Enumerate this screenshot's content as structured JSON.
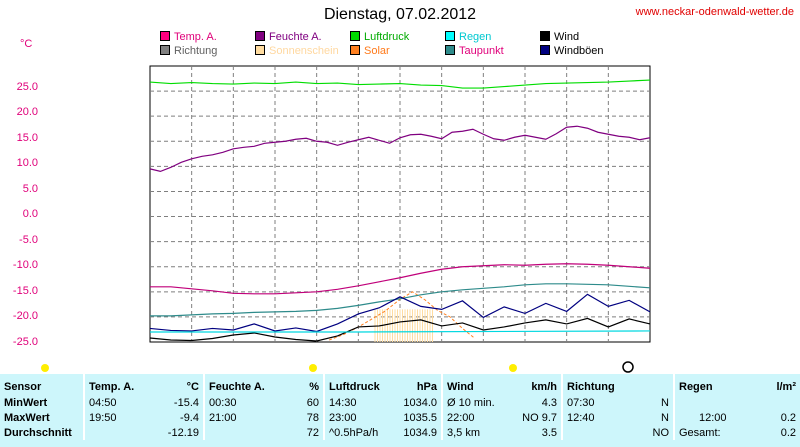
{
  "title": "Dienstag, 07.02.2012",
  "site_link": "www.neckar-odenwald-wetter.de",
  "y_unit": "°C",
  "legend": [
    {
      "label": "Temp. A.",
      "color": "#ff0080",
      "text_color": "#e0007a"
    },
    {
      "label": "Feuchte A.",
      "color": "#800080",
      "text_color": "#800080"
    },
    {
      "label": "Luftdruck",
      "color": "#00dd00",
      "text_color": "#00aa00"
    },
    {
      "label": "Regen",
      "color": "#00ffff",
      "text_color": "#00c8d0"
    },
    {
      "label": "Wind",
      "color": "#000000",
      "text_color": "#000000"
    },
    {
      "label": "Richtung",
      "color": "#808080",
      "text_color": "#606060"
    },
    {
      "label": "Sonnenschein",
      "color": "#ffdca0",
      "text_color": "#ffd8a0"
    },
    {
      "label": "Solar",
      "color": "#ff8020",
      "text_color": "#ff7a1a"
    },
    {
      "label": "Taupunkt",
      "color": "#2e8b8b",
      "text_color": "#e0007a"
    },
    {
      "label": "Windböen",
      "color": "#000080",
      "text_color": "#000000"
    }
  ],
  "chart_data": {
    "type": "line",
    "ylabel": "°C",
    "ylim": [
      -25,
      30
    ],
    "yticks": [
      "25.0",
      "20.0",
      "15.0",
      "10.0",
      "5.0",
      "0.0",
      "-5.0",
      "-10.0",
      "-15.0",
      "-20.0",
      "-25.0"
    ],
    "x_hours": [
      0,
      24
    ],
    "grid": true,
    "series": [
      {
        "name": "Luftdruck",
        "color": "#00dd00",
        "x": [
          0,
          1,
          2,
          3,
          4,
          5,
          6,
          7,
          8,
          9,
          10,
          11,
          12,
          13,
          14,
          15,
          16,
          17,
          18,
          19,
          20,
          21,
          22,
          23,
          24
        ],
        "y": [
          26.8,
          26.5,
          26.7,
          26.5,
          26.4,
          26.6,
          26.5,
          26.8,
          26.5,
          26.6,
          26.3,
          26.4,
          26.5,
          26.2,
          26.1,
          25.6,
          25.6,
          25.9,
          26.2,
          26.5,
          26.6,
          26.7,
          26.8,
          27.0,
          27.2
        ]
      },
      {
        "name": "Feuchte A.",
        "color": "#800080",
        "x": [
          0,
          0.5,
          1,
          1.5,
          2,
          2.5,
          3,
          3.5,
          4,
          4.5,
          5,
          5.5,
          6,
          6.5,
          7,
          7.5,
          8,
          8.5,
          9,
          9.5,
          10,
          10.5,
          11,
          11.5,
          12,
          12.5,
          13,
          13.5,
          14,
          14.5,
          15,
          15.5,
          16,
          16.5,
          17,
          17.5,
          18,
          18.5,
          19,
          19.5,
          20,
          20.5,
          21,
          21.5,
          22,
          22.5,
          23,
          23.5,
          24
        ],
        "y": [
          9.5,
          9.0,
          9.8,
          10.8,
          11.5,
          12.0,
          12.3,
          12.8,
          13.5,
          13.8,
          14.0,
          14.6,
          14.8,
          15.0,
          15.4,
          15.6,
          15.0,
          14.8,
          14.2,
          14.8,
          15.3,
          15.8,
          15.2,
          14.6,
          15.7,
          16.3,
          16.4,
          16.0,
          15.5,
          16.8,
          17.0,
          17.4,
          16.4,
          15.5,
          15.2,
          15.8,
          16.2,
          15.8,
          15.4,
          16.5,
          17.8,
          18.0,
          17.6,
          16.8,
          16.4,
          16.0,
          15.8,
          15.3,
          15.7
        ]
      },
      {
        "name": "Temp. A.",
        "color": "#c0007a",
        "x": [
          0,
          1,
          2,
          3,
          4,
          5,
          6,
          7,
          8,
          9,
          10,
          11,
          12,
          13,
          14,
          15,
          16,
          17,
          18,
          19,
          20,
          21,
          22,
          23,
          24
        ],
        "y": [
          -14.0,
          -14.0,
          -14.4,
          -14.8,
          -15.3,
          -15.4,
          -15.4,
          -15.2,
          -15.0,
          -14.5,
          -13.8,
          -13.0,
          -12.2,
          -11.3,
          -10.5,
          -10.0,
          -9.8,
          -9.6,
          -9.7,
          -9.5,
          -9.4,
          -9.5,
          -9.7,
          -10.0,
          -10.3
        ]
      },
      {
        "name": "Taupunkt",
        "color": "#2e8b8b",
        "x": [
          0,
          1,
          2,
          3,
          4,
          5,
          6,
          7,
          8,
          9,
          10,
          11,
          12,
          13,
          14,
          15,
          16,
          17,
          18,
          19,
          20,
          21,
          22,
          23,
          24
        ],
        "y": [
          -19.8,
          -19.8,
          -19.6,
          -19.4,
          -19.3,
          -19.1,
          -19.0,
          -18.9,
          -18.7,
          -18.3,
          -17.7,
          -17.0,
          -16.4,
          -15.6,
          -15.0,
          -14.6,
          -14.3,
          -14.0,
          -13.6,
          -13.4,
          -13.4,
          -13.5,
          -13.6,
          -13.9,
          -14.2
        ]
      },
      {
        "name": "Wind",
        "color": "#000000",
        "x": [
          0,
          1,
          2,
          3,
          4,
          5,
          6,
          7,
          8,
          9,
          10,
          11,
          12,
          13,
          14,
          15,
          16,
          17,
          18,
          19,
          20,
          21,
          22,
          23,
          24
        ],
        "y": [
          -24.2,
          -24.6,
          -24.7,
          -24.3,
          -23.6,
          -23.2,
          -24.0,
          -24.5,
          -24.8,
          -23.8,
          -22.0,
          -21.8,
          -21.0,
          -20.6,
          -21.8,
          -21.2,
          -22.6,
          -22.0,
          -21.2,
          -20.6,
          -21.4,
          -20.3,
          -22.0,
          -20.4,
          -21.4
        ]
      },
      {
        "name": "Windböen",
        "color": "#000080",
        "x": [
          0,
          1,
          2,
          3,
          4,
          5,
          6,
          7,
          8,
          9,
          10,
          11,
          12,
          13,
          14,
          15,
          16,
          17,
          18,
          19,
          20,
          21,
          22,
          23,
          24
        ],
        "y": [
          -22.3,
          -22.7,
          -22.8,
          -22.3,
          -22.6,
          -21.4,
          -22.8,
          -22.2,
          -22.9,
          -21.4,
          -19.4,
          -18.2,
          -16.0,
          -17.9,
          -18.5,
          -16.8,
          -20.1,
          -18.0,
          -19.3,
          -17.3,
          -18.9,
          -15.5,
          -17.9,
          -16.7,
          -19.0
        ]
      },
      {
        "name": "Regen",
        "color": "#00d8e0",
        "x": [
          0,
          9.5,
          10,
          24
        ],
        "y": [
          -23.0,
          -23.0,
          -23.0,
          -22.8
        ]
      }
    ],
    "sunshine": {
      "x_start": 10.8,
      "x_end": 13.6,
      "y_top": -18.5,
      "color": "#ffdca0"
    },
    "solar": {
      "color": "#ff8020",
      "x": [
        8.6,
        9.3,
        10,
        10.7,
        11.3,
        12.0,
        12.6,
        13.2,
        13.8,
        14.4,
        15.0,
        15.6
      ],
      "y": [
        -24.6,
        -23.5,
        -22.0,
        -20.3,
        -18.8,
        -16.5,
        -15.0,
        -16.6,
        -18.7,
        -20.0,
        -22.3,
        -24.3
      ]
    }
  },
  "sun_markers": [
    "sunrise",
    "noon",
    "sunset"
  ],
  "moon_marker": "moon-phase",
  "table": {
    "header": [
      "Sensor",
      "Temp. A.",
      "°C",
      "Feuchte A.",
      "%",
      "Luftdruck",
      "hPa",
      "Wind",
      "km/h",
      "Richtung",
      "",
      "Regen",
      "l/m²"
    ],
    "rows": [
      [
        "MinWert",
        "04:50",
        "-15.4",
        "00:30",
        "60",
        "14:30",
        "1034.0",
        "Ø 10 min.",
        "4.3",
        "07:30",
        "N",
        "",
        ""
      ],
      [
        "MaxWert",
        "19:50",
        "-9.4",
        "21:00",
        "78",
        "23:00",
        "1035.5",
        "22:00",
        "NO 9.7",
        "12:40",
        "N",
        "12:00",
        "0.2"
      ],
      [
        "Durchschnitt",
        "",
        "-12.19",
        "",
        "72",
        "^0.5hPa/h",
        "1034.9",
        "3,5 km",
        "3.5",
        "",
        "NO",
        "Gesamt:",
        "0.2"
      ]
    ]
  }
}
